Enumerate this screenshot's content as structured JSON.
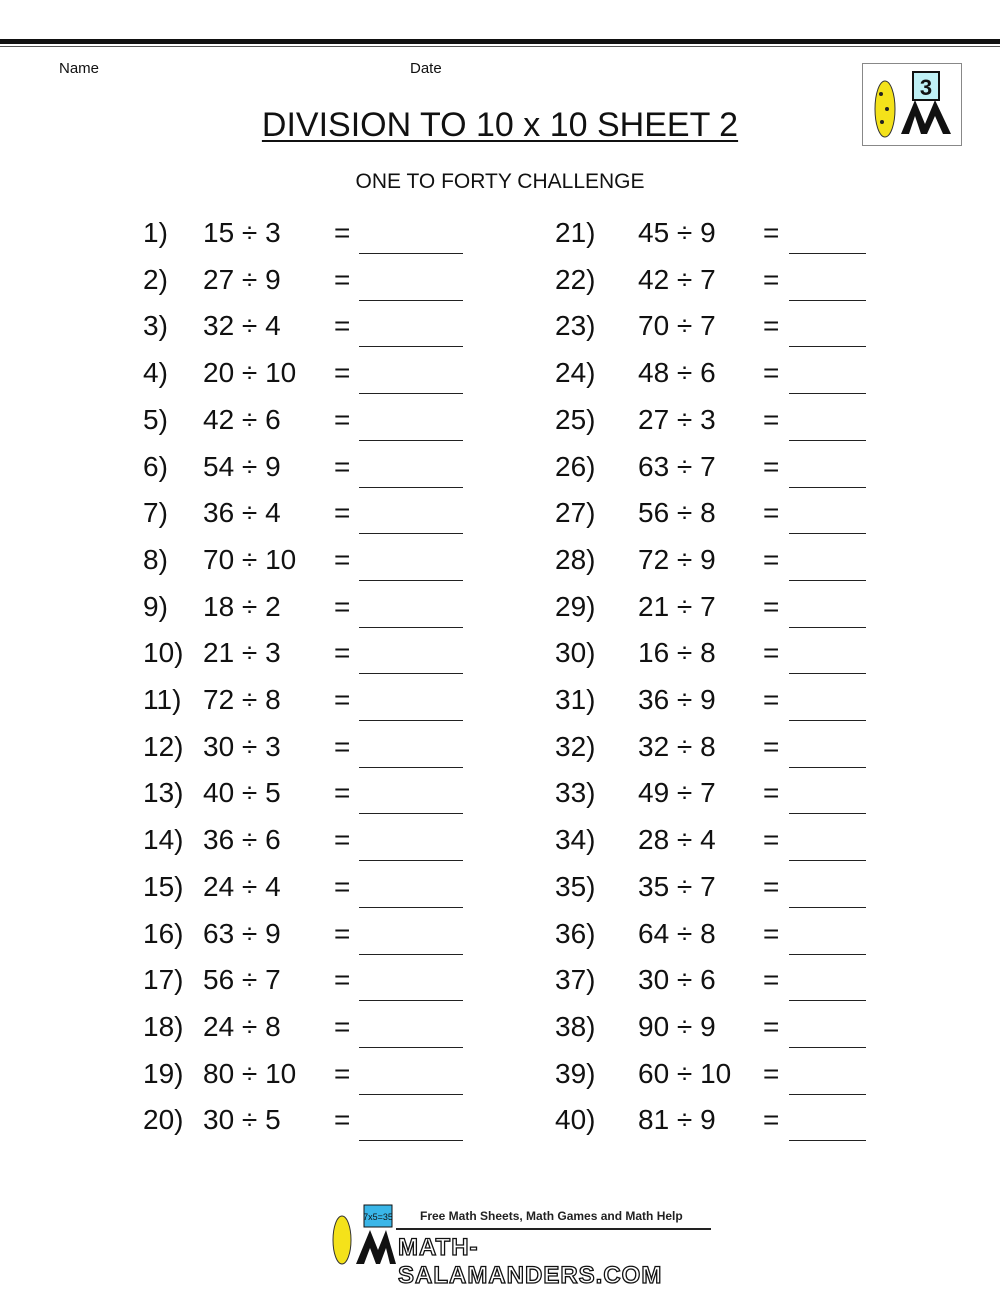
{
  "header": {
    "name_label": "Name",
    "date_label": "Date",
    "title": "DIVISION TO 10 x 10 SHEET 2",
    "subtitle": "ONE TO FORTY CHALLENGE",
    "logo_text": "3"
  },
  "problems": [
    {
      "num": "1)",
      "expr": "15 ÷ 3"
    },
    {
      "num": "2)",
      "expr": "27 ÷ 9"
    },
    {
      "num": "3)",
      "expr": "32 ÷ 4"
    },
    {
      "num": "4)",
      "expr": "20 ÷ 10"
    },
    {
      "num": "5)",
      "expr": "42 ÷ 6"
    },
    {
      "num": "6)",
      "expr": "54 ÷ 9"
    },
    {
      "num": "7)",
      "expr": "36 ÷ 4"
    },
    {
      "num": "8)",
      "expr": "70 ÷ 10"
    },
    {
      "num": "9)",
      "expr": "18 ÷ 2"
    },
    {
      "num": "10)",
      "expr": "21 ÷ 3"
    },
    {
      "num": "11)",
      "expr": "72 ÷ 8"
    },
    {
      "num": "12)",
      "expr": "30 ÷ 3"
    },
    {
      "num": "13)",
      "expr": "40 ÷ 5"
    },
    {
      "num": "14)",
      "expr": "36 ÷ 6"
    },
    {
      "num": "15)",
      "expr": "24 ÷ 4"
    },
    {
      "num": "16)",
      "expr": "63 ÷ 9"
    },
    {
      "num": "17)",
      "expr": "56 ÷ 7"
    },
    {
      "num": "18)",
      "expr": "24 ÷ 8"
    },
    {
      "num": "19)",
      "expr": "80 ÷ 10"
    },
    {
      "num": "20)",
      "expr": "30 ÷ 5"
    },
    {
      "num": "21)",
      "expr": "45 ÷ 9"
    },
    {
      "num": "22)",
      "expr": "42 ÷ 7"
    },
    {
      "num": "23)",
      "expr": "70 ÷ 7"
    },
    {
      "num": "24)",
      "expr": "48 ÷ 6"
    },
    {
      "num": "25)",
      "expr": "27 ÷ 3"
    },
    {
      "num": "26)",
      "expr": "63 ÷ 7"
    },
    {
      "num": "27)",
      "expr": "56 ÷ 8"
    },
    {
      "num": "28)",
      "expr": "72 ÷ 9"
    },
    {
      "num": "29)",
      "expr": "21 ÷ 7"
    },
    {
      "num": "30)",
      "expr": "16 ÷ 8"
    },
    {
      "num": "31)",
      "expr": "36 ÷ 9"
    },
    {
      "num": "32)",
      "expr": "32 ÷ 8"
    },
    {
      "num": "33)",
      "expr": "49 ÷ 7"
    },
    {
      "num": "34)",
      "expr": "28 ÷ 4"
    },
    {
      "num": "35)",
      "expr": "35 ÷ 7"
    },
    {
      "num": "36)",
      "expr": "64 ÷ 8"
    },
    {
      "num": "37)",
      "expr": "30 ÷ 6"
    },
    {
      "num": "38)",
      "expr": "90 ÷ 9"
    },
    {
      "num": "39)",
      "expr": "60 ÷ 10"
    },
    {
      "num": "40)",
      "expr": "81 ÷ 9"
    }
  ],
  "equals": "=",
  "footer": {
    "tagline": "Free Math Sheets, Math Games and Math Help",
    "site": "MATH-SALAMANDERS.COM",
    "logo_text": "7x5=35"
  }
}
